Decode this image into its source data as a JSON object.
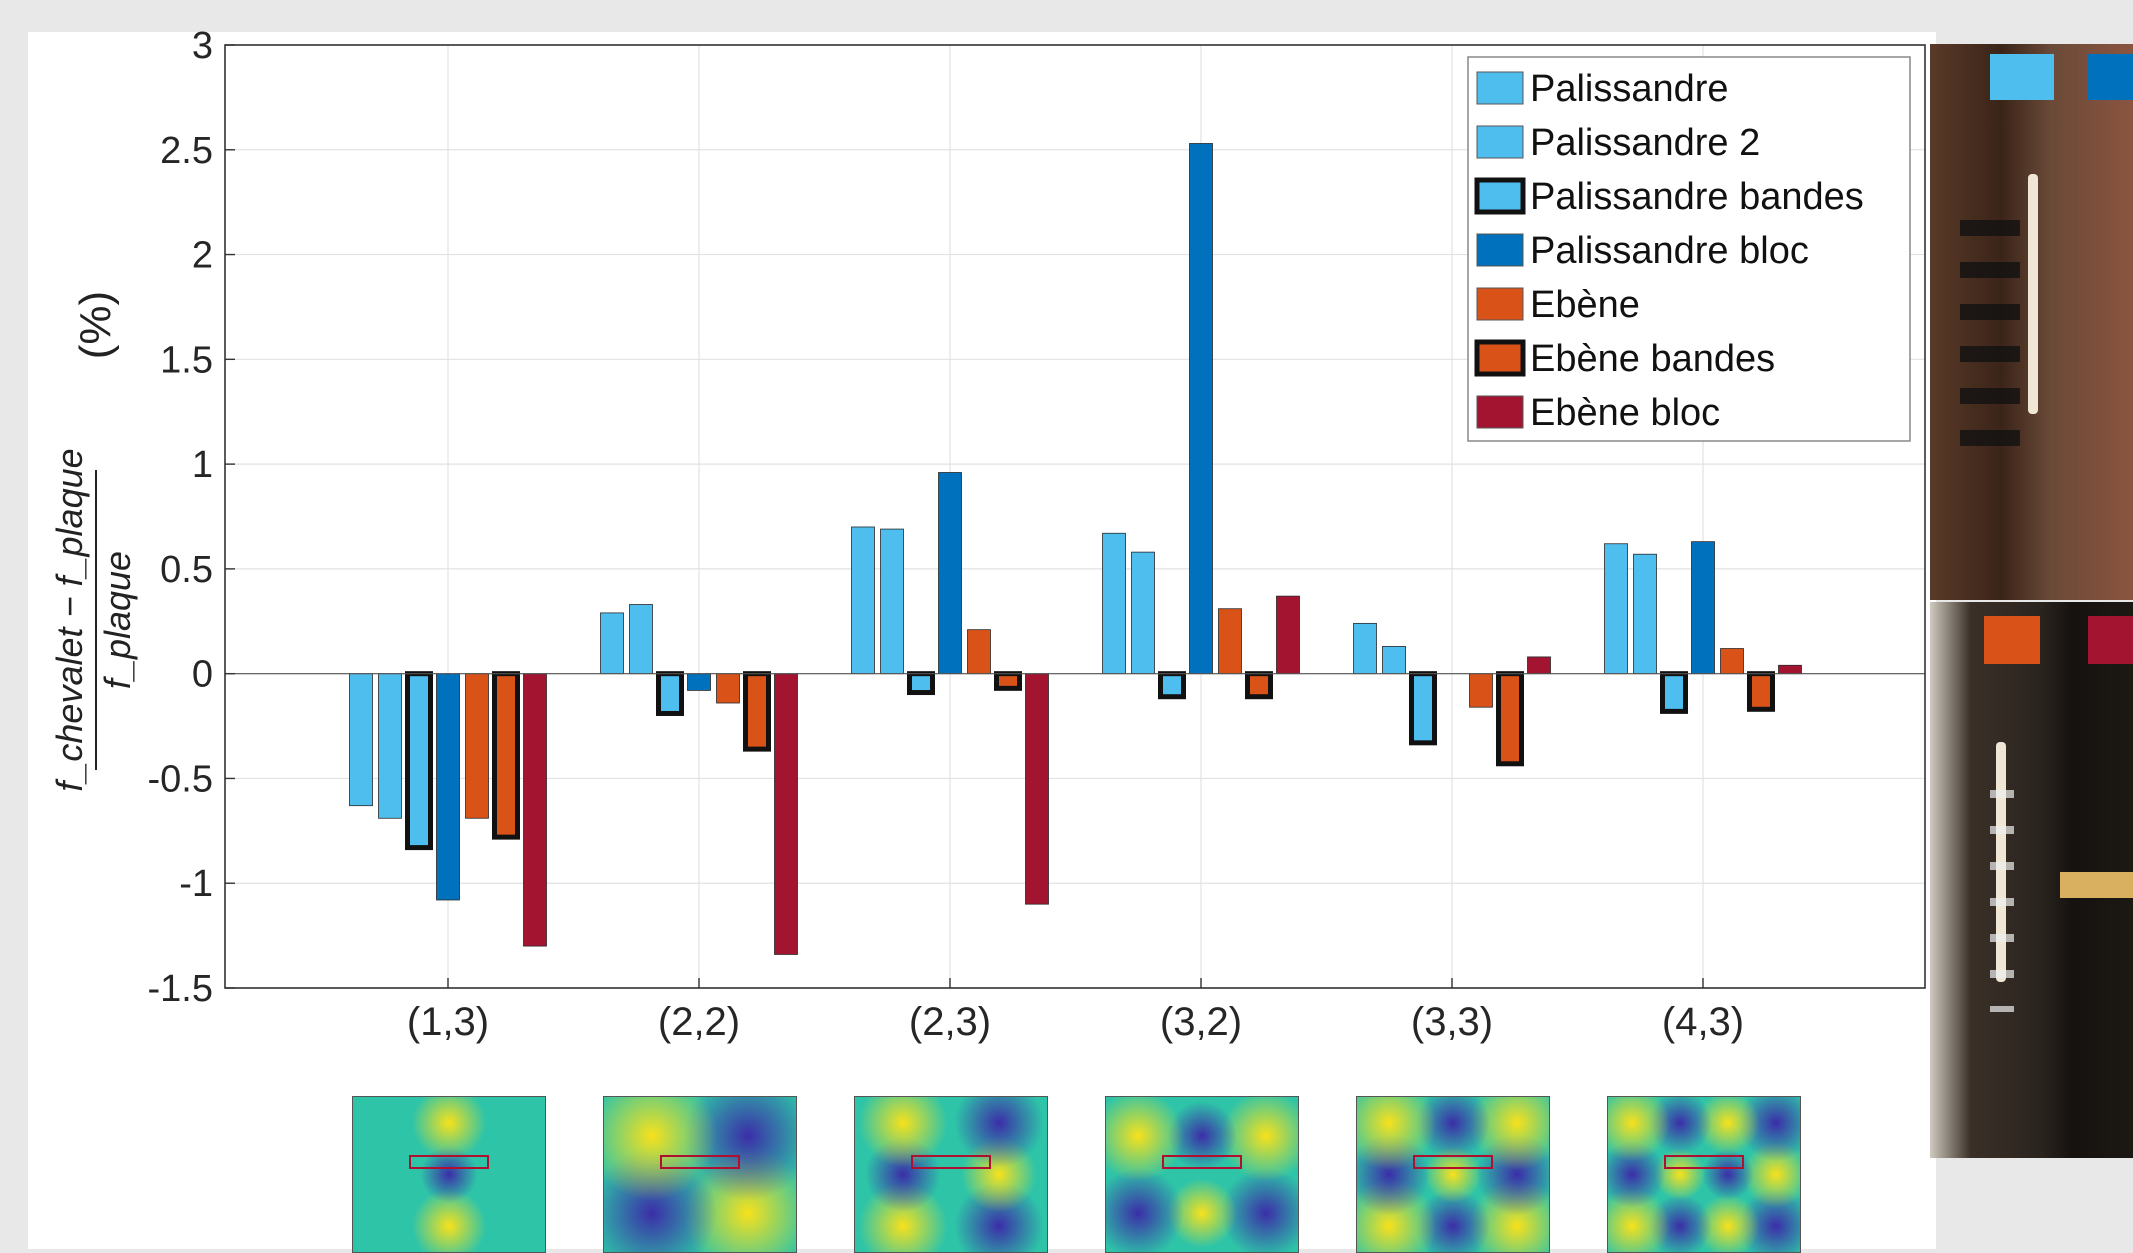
{
  "chart_data": {
    "type": "bar",
    "ylabel_math": "(f_chevalet − f_plaque) / f_plaque",
    "ylabel_numerator": "f_chevalet − f_plaque",
    "ylabel_denominator": "f_plaque",
    "ylabel_unit": "(%)",
    "xlabel": "",
    "ylim": [
      -1.5,
      3
    ],
    "yticks": [
      -1.5,
      -1,
      -0.5,
      0,
      0.5,
      1,
      1.5,
      2,
      2.5,
      3
    ],
    "ytick_labels": [
      "-1.5",
      "-1",
      "-0.5",
      "0",
      "0.5",
      "1",
      "1.5",
      "2",
      "2.5",
      "3"
    ],
    "grid": true,
    "legend_position": "top-right",
    "categories": [
      "(1,3)",
      "(2,2)",
      "(2,3)",
      "(3,2)",
      "(3,3)",
      "(4,3)"
    ],
    "series": [
      {
        "name": "Palissandre",
        "color": "#4dbeee",
        "outlined": false,
        "values": [
          -0.63,
          0.29,
          0.7,
          0.67,
          0.24,
          0.62
        ]
      },
      {
        "name": "Palissandre 2",
        "color": "#4dbeee",
        "outlined": false,
        "values": [
          -0.69,
          0.33,
          0.69,
          0.58,
          0.13,
          0.57
        ]
      },
      {
        "name": "Palissandre bandes",
        "color": "#4dbeee",
        "outlined": true,
        "values": [
          -0.83,
          -0.19,
          -0.09,
          -0.11,
          -0.33,
          -0.18
        ]
      },
      {
        "name": "Palissandre bloc",
        "color": "#0072bd",
        "outlined": false,
        "values": [
          -1.08,
          -0.08,
          0.96,
          2.53,
          null,
          0.63
        ]
      },
      {
        "name": "Ebène",
        "color": "#d95319",
        "outlined": false,
        "values": [
          -0.69,
          -0.14,
          0.21,
          0.31,
          -0.16,
          0.12
        ]
      },
      {
        "name": "Ebène bandes",
        "color": "#d95319",
        "outlined": true,
        "values": [
          -0.78,
          -0.36,
          -0.07,
          -0.11,
          -0.43,
          -0.17
        ]
      },
      {
        "name": "Ebène bloc",
        "color": "#a2142f",
        "outlined": false,
        "values": [
          -1.3,
          -1.34,
          -1.1,
          0.37,
          0.08,
          0.04
        ]
      }
    ]
  },
  "colors": {
    "light_blue": "#4dbeee",
    "dark_blue": "#0072bd",
    "orange": "#d95319",
    "dark_red": "#a2142f",
    "photo_swatch_top": [
      "#4dbeee",
      "#0072bd"
    ],
    "photo_swatch_bottom": [
      "#d95319",
      "#a2142f"
    ]
  },
  "mode_shapes": {
    "count": 6,
    "palette": [
      "#3b2ea8",
      "#2ec4a8",
      "#f7e11c"
    ]
  }
}
